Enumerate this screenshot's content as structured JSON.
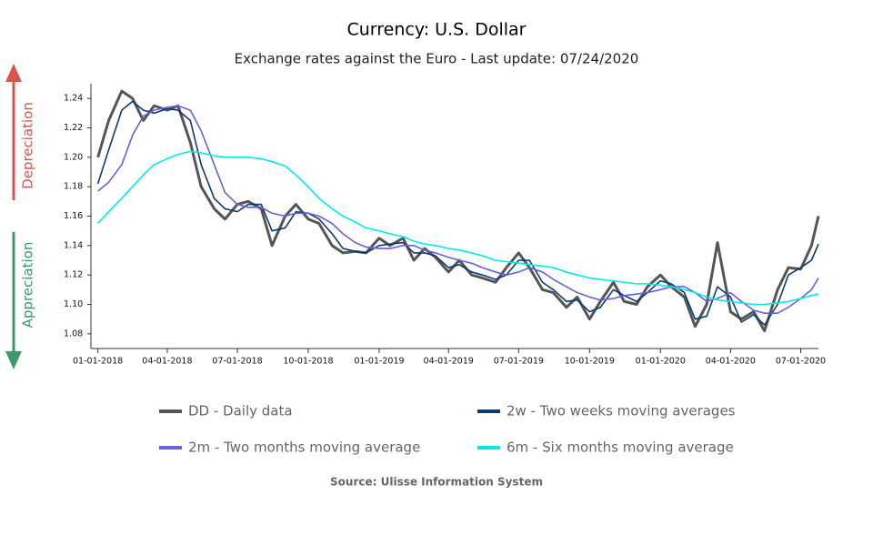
{
  "chart_data": {
    "type": "line",
    "title": "Currency: U.S. Dollar",
    "subtitle": "Exchange rates against the Euro - Last update: 07/24/2020",
    "source": "Source: Ulisse Information System",
    "up_label": "Depreciation",
    "down_label": "Appreciation",
    "x": [
      "01-01-2018",
      "01-15-2018",
      "02-01-2018",
      "02-15-2018",
      "03-01-2018",
      "03-15-2018",
      "04-01-2018",
      "04-15-2018",
      "05-01-2018",
      "05-15-2018",
      "06-01-2018",
      "06-15-2018",
      "07-01-2018",
      "07-15-2018",
      "08-01-2018",
      "08-15-2018",
      "09-01-2018",
      "09-15-2018",
      "10-01-2018",
      "10-15-2018",
      "11-01-2018",
      "11-15-2018",
      "12-01-2018",
      "12-15-2018",
      "01-01-2019",
      "01-15-2019",
      "02-01-2019",
      "02-15-2019",
      "03-01-2019",
      "03-15-2019",
      "04-01-2019",
      "04-15-2019",
      "05-01-2019",
      "05-15-2019",
      "06-01-2019",
      "06-15-2019",
      "07-01-2019",
      "07-15-2019",
      "08-01-2019",
      "08-15-2019",
      "09-01-2019",
      "09-15-2019",
      "10-01-2019",
      "10-15-2019",
      "11-01-2019",
      "11-15-2019",
      "12-01-2019",
      "12-15-2019",
      "01-01-2020",
      "01-15-2020",
      "02-01-2020",
      "02-15-2020",
      "03-01-2020",
      "03-15-2020",
      "04-01-2020",
      "04-15-2020",
      "05-01-2020",
      "05-15-2020",
      "06-01-2020",
      "06-15-2020",
      "07-01-2020",
      "07-15-2020",
      "07-24-2020"
    ],
    "series": [
      {
        "name": "DD - Daily data",
        "color": "#555555",
        "width": 3,
        "values": [
          1.2,
          1.225,
          1.245,
          1.24,
          1.225,
          1.235,
          1.232,
          1.235,
          1.21,
          1.18,
          1.165,
          1.158,
          1.168,
          1.17,
          1.165,
          1.14,
          1.16,
          1.168,
          1.158,
          1.155,
          1.14,
          1.135,
          1.136,
          1.135,
          1.145,
          1.14,
          1.145,
          1.13,
          1.138,
          1.132,
          1.122,
          1.13,
          1.12,
          1.118,
          1.115,
          1.125,
          1.135,
          1.125,
          1.11,
          1.108,
          1.098,
          1.105,
          1.09,
          1.102,
          1.115,
          1.102,
          1.1,
          1.112,
          1.12,
          1.112,
          1.105,
          1.085,
          1.1,
          1.142,
          1.095,
          1.09,
          1.095,
          1.082,
          1.11,
          1.125,
          1.124,
          1.14,
          1.16
        ]
      },
      {
        "name": "2w - Two weeks moving averages",
        "color": "#0b3c70",
        "width": 1.6,
        "values": [
          1.182,
          1.205,
          1.232,
          1.238,
          1.232,
          1.23,
          1.233,
          1.232,
          1.225,
          1.195,
          1.172,
          1.165,
          1.163,
          1.168,
          1.168,
          1.15,
          1.152,
          1.163,
          1.162,
          1.158,
          1.148,
          1.138,
          1.136,
          1.135,
          1.14,
          1.141,
          1.142,
          1.135,
          1.135,
          1.133,
          1.125,
          1.127,
          1.122,
          1.12,
          1.117,
          1.12,
          1.13,
          1.13,
          1.115,
          1.11,
          1.102,
          1.103,
          1.095,
          1.098,
          1.11,
          1.106,
          1.102,
          1.108,
          1.116,
          1.114,
          1.108,
          1.09,
          1.092,
          1.112,
          1.105,
          1.088,
          1.093,
          1.086,
          1.1,
          1.12,
          1.125,
          1.13,
          1.141
        ]
      },
      {
        "name": "2m - Two months moving average",
        "color": "#6a5fdc",
        "width": 1.6,
        "values": [
          1.177,
          1.183,
          1.195,
          1.215,
          1.228,
          1.232,
          1.234,
          1.235,
          1.232,
          1.218,
          1.195,
          1.176,
          1.168,
          1.166,
          1.166,
          1.162,
          1.16,
          1.162,
          1.162,
          1.16,
          1.155,
          1.148,
          1.142,
          1.139,
          1.138,
          1.138,
          1.14,
          1.14,
          1.137,
          1.135,
          1.132,
          1.13,
          1.128,
          1.125,
          1.122,
          1.12,
          1.122,
          1.125,
          1.122,
          1.117,
          1.112,
          1.108,
          1.105,
          1.103,
          1.104,
          1.106,
          1.107,
          1.108,
          1.11,
          1.112,
          1.112,
          1.108,
          1.102,
          1.104,
          1.108,
          1.102,
          1.096,
          1.094,
          1.094,
          1.098,
          1.104,
          1.11,
          1.118
        ]
      },
      {
        "name": "6m - Six months moving average",
        "color": "#00eaea",
        "width": 1.6,
        "values": [
          1.155,
          1.163,
          1.172,
          1.18,
          1.188,
          1.195,
          1.199,
          1.202,
          1.204,
          1.203,
          1.201,
          1.2,
          1.2,
          1.2,
          1.199,
          1.197,
          1.194,
          1.188,
          1.18,
          1.172,
          1.165,
          1.16,
          1.156,
          1.152,
          1.15,
          1.148,
          1.146,
          1.143,
          1.141,
          1.14,
          1.138,
          1.137,
          1.135,
          1.133,
          1.13,
          1.129,
          1.128,
          1.127,
          1.126,
          1.125,
          1.122,
          1.12,
          1.118,
          1.117,
          1.116,
          1.115,
          1.114,
          1.114,
          1.113,
          1.112,
          1.11,
          1.108,
          1.105,
          1.103,
          1.102,
          1.101,
          1.1,
          1.1,
          1.101,
          1.102,
          1.104,
          1.106,
          1.107
        ]
      }
    ],
    "xlim": [
      "12-23-2017",
      "07-24-2020"
    ],
    "xticks": [
      "01-01-2018",
      "04-01-2018",
      "07-01-2018",
      "10-01-2018",
      "01-01-2019",
      "04-01-2019",
      "07-01-2019",
      "10-01-2019",
      "01-01-2020",
      "04-01-2020",
      "07-01-2020"
    ],
    "ylim": [
      1.07,
      1.25
    ],
    "yticks": [
      1.08,
      {
        "value": 1.1,
        "label": "1.10"
      },
      1.12,
      1.14,
      1.16,
      1.18,
      {
        "value": 1.2,
        "label": "1.20"
      },
      1.22,
      1.24
    ],
    "grid": false
  }
}
